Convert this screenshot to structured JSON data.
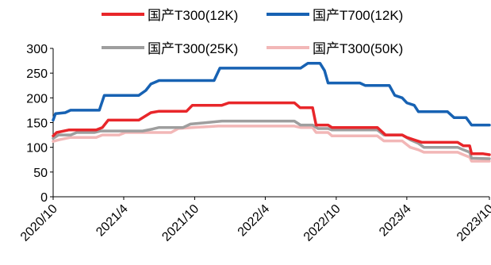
{
  "chart_data": {
    "type": "line",
    "title": "",
    "xlabel": "",
    "ylabel": "",
    "ylim": [
      0,
      300
    ],
    "yticks": [
      "0",
      "50",
      "100",
      "150",
      "200",
      "250",
      "300"
    ],
    "x_ticks": [
      "2020/10",
      "2021/4",
      "2021/10",
      "2022/4",
      "2022/10",
      "2023/4",
      "2023/10"
    ],
    "x_range": [
      "2020-10-01",
      "2023-10-31"
    ],
    "grid": false,
    "legend_position": "top",
    "series": [
      {
        "name": "国产T300(12K)",
        "color": "#e8262a",
        "points": [
          [
            "2020-10-01",
            123
          ],
          [
            "2020-10-10",
            130
          ],
          [
            "2020-11-10",
            135
          ],
          [
            "2021-01-20",
            135
          ],
          [
            "2021-02-05",
            140
          ],
          [
            "2021-02-20",
            155
          ],
          [
            "2021-05-10",
            155
          ],
          [
            "2021-06-10",
            170
          ],
          [
            "2021-07-01",
            173
          ],
          [
            "2021-09-10",
            173
          ],
          [
            "2021-09-25",
            185
          ],
          [
            "2021-12-10",
            185
          ],
          [
            "2021-12-28",
            190
          ],
          [
            "2022-06-15",
            190
          ],
          [
            "2022-06-30",
            180
          ],
          [
            "2022-08-01",
            180
          ],
          [
            "2022-08-10",
            145
          ],
          [
            "2022-09-10",
            145
          ],
          [
            "2022-09-20",
            140
          ],
          [
            "2023-01-15",
            140
          ],
          [
            "2023-02-05",
            125
          ],
          [
            "2023-03-20",
            125
          ],
          [
            "2023-04-01",
            120
          ],
          [
            "2023-04-20",
            115
          ],
          [
            "2023-05-10",
            110
          ],
          [
            "2023-08-10",
            110
          ],
          [
            "2023-08-25",
            103
          ],
          [
            "2023-09-10",
            103
          ],
          [
            "2023-09-15",
            87
          ],
          [
            "2023-10-15",
            87
          ],
          [
            "2023-10-31",
            85
          ]
        ]
      },
      {
        "name": "国产T700(12K)",
        "color": "#1762b3",
        "points": [
          [
            "2020-10-01",
            155
          ],
          [
            "2020-10-07",
            168
          ],
          [
            "2020-11-01",
            170
          ],
          [
            "2020-11-15",
            175
          ],
          [
            "2021-01-28",
            175
          ],
          [
            "2021-02-10",
            205
          ],
          [
            "2021-05-10",
            205
          ],
          [
            "2021-05-28",
            215
          ],
          [
            "2021-06-10",
            228
          ],
          [
            "2021-07-01",
            235
          ],
          [
            "2021-11-20",
            235
          ],
          [
            "2021-12-05",
            260
          ],
          [
            "2022-07-01",
            260
          ],
          [
            "2022-07-20",
            270
          ],
          [
            "2022-08-20",
            270
          ],
          [
            "2022-09-01",
            255
          ],
          [
            "2022-09-10",
            230
          ],
          [
            "2022-12-01",
            230
          ],
          [
            "2022-12-15",
            225
          ],
          [
            "2023-02-15",
            225
          ],
          [
            "2023-03-01",
            205
          ],
          [
            "2023-03-20",
            200
          ],
          [
            "2023-04-01",
            190
          ],
          [
            "2023-04-20",
            185
          ],
          [
            "2023-05-01",
            172
          ],
          [
            "2023-07-15",
            172
          ],
          [
            "2023-08-01",
            160
          ],
          [
            "2023-09-01",
            160
          ],
          [
            "2023-09-15",
            145
          ],
          [
            "2023-10-31",
            145
          ]
        ]
      },
      {
        "name": "国产T300(25K)",
        "color": "#9e9e9e",
        "points": [
          [
            "2020-10-01",
            118
          ],
          [
            "2020-10-15",
            125
          ],
          [
            "2020-11-15",
            125
          ],
          [
            "2020-12-01",
            130
          ],
          [
            "2021-01-15",
            130
          ],
          [
            "2021-02-01",
            133
          ],
          [
            "2021-05-20",
            133
          ],
          [
            "2021-06-15",
            137
          ],
          [
            "2021-07-01",
            140
          ],
          [
            "2021-09-01",
            140
          ],
          [
            "2021-09-20",
            147
          ],
          [
            "2021-11-01",
            150
          ],
          [
            "2021-12-10",
            153
          ],
          [
            "2022-06-15",
            153
          ],
          [
            "2022-07-01",
            145
          ],
          [
            "2022-08-01",
            145
          ],
          [
            "2022-08-15",
            138
          ],
          [
            "2022-09-10",
            138
          ],
          [
            "2022-09-20",
            135
          ],
          [
            "2023-01-15",
            135
          ],
          [
            "2023-02-01",
            125
          ],
          [
            "2023-03-20",
            125
          ],
          [
            "2023-04-10",
            115
          ],
          [
            "2023-05-01",
            108
          ],
          [
            "2023-05-15",
            100
          ],
          [
            "2023-08-10",
            100
          ],
          [
            "2023-08-25",
            95
          ],
          [
            "2023-09-10",
            90
          ],
          [
            "2023-09-15",
            78
          ],
          [
            "2023-10-31",
            77
          ]
        ]
      },
      {
        "name": "国产T300(50K)",
        "color": "#f2b7b7",
        "points": [
          [
            "2020-10-01",
            112
          ],
          [
            "2020-10-15",
            115
          ],
          [
            "2020-11-15",
            120
          ],
          [
            "2021-01-20",
            120
          ],
          [
            "2021-02-05",
            125
          ],
          [
            "2021-03-20",
            125
          ],
          [
            "2021-04-05",
            130
          ],
          [
            "2021-08-01",
            130
          ],
          [
            "2021-08-20",
            138
          ],
          [
            "2021-09-25",
            140
          ],
          [
            "2021-12-01",
            143
          ],
          [
            "2022-06-15",
            143
          ],
          [
            "2022-07-01",
            140
          ],
          [
            "2022-08-01",
            140
          ],
          [
            "2022-08-10",
            130
          ],
          [
            "2022-09-10",
            130
          ],
          [
            "2022-09-20",
            123
          ],
          [
            "2023-01-15",
            123
          ],
          [
            "2023-02-01",
            113
          ],
          [
            "2023-03-20",
            113
          ],
          [
            "2023-04-10",
            100
          ],
          [
            "2023-05-01",
            95
          ],
          [
            "2023-05-15",
            90
          ],
          [
            "2023-08-10",
            90
          ],
          [
            "2023-08-25",
            85
          ],
          [
            "2023-09-10",
            80
          ],
          [
            "2023-09-15",
            72
          ],
          [
            "2023-10-31",
            72
          ]
        ]
      }
    ]
  }
}
